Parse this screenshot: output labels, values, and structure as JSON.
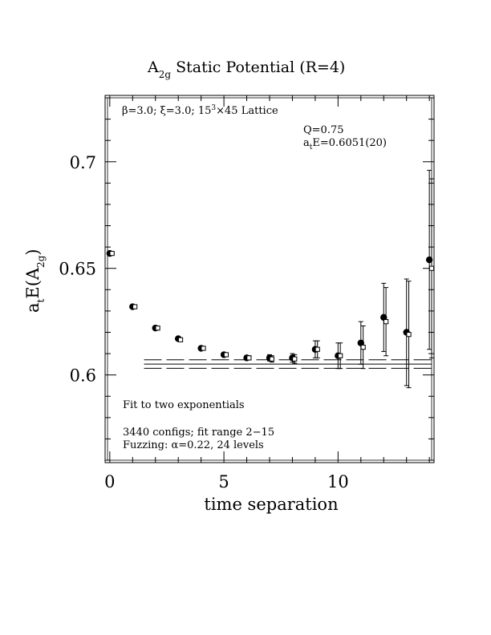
{
  "chart_data": {
    "type": "scatter",
    "title": {
      "main": "A",
      "sub": "2g",
      "rest": " Static Potential (R=4)"
    },
    "xlabel": "time separation",
    "ylabel": {
      "a": "a",
      "t": "t",
      "e": "E(A",
      "sub": "2g",
      "close": ")"
    },
    "xlim": [
      -0.1,
      14.1
    ],
    "ylim": [
      0.56,
      0.73
    ],
    "x_ticks": [
      0,
      5,
      10
    ],
    "x_tick_labels": [
      "0",
      "5",
      "10"
    ],
    "y_ticks": [
      0.6,
      0.65,
      0.7
    ],
    "y_tick_labels": [
      "0.6",
      "0.65",
      "0.7"
    ],
    "grid": false,
    "series": [
      {
        "marker": "filled-circle",
        "x": [
          0,
          1,
          2,
          3,
          4,
          5,
          6,
          7,
          8,
          9,
          10,
          11,
          12,
          13,
          14
        ],
        "y": [
          0.657,
          0.632,
          0.622,
          0.617,
          0.6125,
          0.6095,
          0.608,
          0.608,
          0.608,
          0.612,
          0.609,
          0.615,
          0.627,
          0.62,
          0.654
        ],
        "err": [
          0.0005,
          0.0005,
          0.0005,
          0.0006,
          0.0006,
          0.0008,
          0.001,
          0.0015,
          0.002,
          0.004,
          0.006,
          0.01,
          0.016,
          0.025,
          0.042
        ]
      },
      {
        "marker": "open-square",
        "x": [
          0.1,
          1.1,
          2.1,
          3.1,
          4.1,
          5.1,
          6.1,
          7.1,
          8.1,
          9.1,
          10.1,
          11.1,
          12.1,
          13.1,
          14.1
        ],
        "y": [
          0.657,
          0.632,
          0.622,
          0.6165,
          0.6125,
          0.6095,
          0.608,
          0.6075,
          0.6075,
          0.612,
          0.609,
          0.613,
          0.625,
          0.619,
          0.65
        ],
        "err": [
          0.0005,
          0.0005,
          0.0005,
          0.0006,
          0.0006,
          0.0008,
          0.001,
          0.0015,
          0.002,
          0.004,
          0.006,
          0.01,
          0.016,
          0.025,
          0.042
        ]
      }
    ],
    "fit": {
      "x_start": 1.5,
      "x_end": 14.1,
      "value": 0.6051,
      "error": 0.002
    },
    "annotations": {
      "lattice": {
        "beta": "β",
        "rest1": "=3.0; ",
        "xi": "ξ",
        "rest2": "=3.0; 15",
        "sup": "3",
        "rest3": "×45 Lattice"
      },
      "q": "Q=0.75",
      "ate": {
        "a": "a",
        "t": "t",
        "rest": "E=0.6051(20)"
      },
      "fit_note": "Fit to two exponentials",
      "configs": "3440 configs; fit range 2−15",
      "fuzzing": "Fuzzing: α=0.22, 24 levels"
    }
  }
}
